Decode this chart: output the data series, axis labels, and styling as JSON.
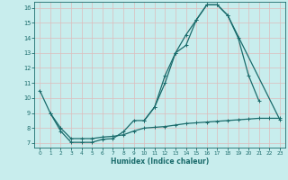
{
  "xlabel": "Humidex (Indice chaleur)",
  "xlim": [
    -0.5,
    23.5
  ],
  "ylim": [
    6.7,
    16.4
  ],
  "xticks": [
    0,
    1,
    2,
    3,
    4,
    5,
    6,
    7,
    8,
    9,
    10,
    11,
    12,
    13,
    14,
    15,
    16,
    17,
    18,
    19,
    20,
    21,
    22,
    23
  ],
  "yticks": [
    7,
    8,
    9,
    10,
    11,
    12,
    13,
    14,
    15,
    16
  ],
  "bg_color": "#c8eded",
  "grid_color": "#ddbcbc",
  "line_color": "#1a6b6b",
  "line1_x": [
    0,
    1,
    2,
    3,
    4,
    5,
    6,
    7,
    8,
    9,
    10,
    11,
    12,
    13,
    14,
    15,
    16,
    17,
    18,
    19,
    20,
    21
  ],
  "line1_y": [
    10.5,
    9.0,
    7.8,
    7.05,
    7.05,
    7.05,
    7.25,
    7.3,
    7.75,
    8.5,
    8.5,
    9.4,
    11.5,
    13.0,
    13.5,
    15.2,
    16.2,
    16.2,
    15.5,
    14.0,
    11.5,
    9.8
  ],
  "line2_x": [
    10,
    11,
    12,
    13,
    14,
    15,
    16,
    17,
    18,
    23
  ],
  "line2_y": [
    8.5,
    9.4,
    11.0,
    13.0,
    14.2,
    15.2,
    16.2,
    16.2,
    15.5,
    8.55
  ],
  "line3_x": [
    1,
    2,
    3,
    4,
    5,
    6,
    7,
    8,
    9,
    10,
    11,
    12,
    13,
    14,
    15,
    16,
    17,
    18,
    19,
    20,
    21,
    22,
    23
  ],
  "line3_y": [
    9.0,
    8.0,
    7.3,
    7.3,
    7.3,
    7.4,
    7.45,
    7.55,
    7.8,
    8.0,
    8.05,
    8.1,
    8.2,
    8.3,
    8.35,
    8.4,
    8.45,
    8.5,
    8.55,
    8.6,
    8.65,
    8.65,
    8.65
  ]
}
